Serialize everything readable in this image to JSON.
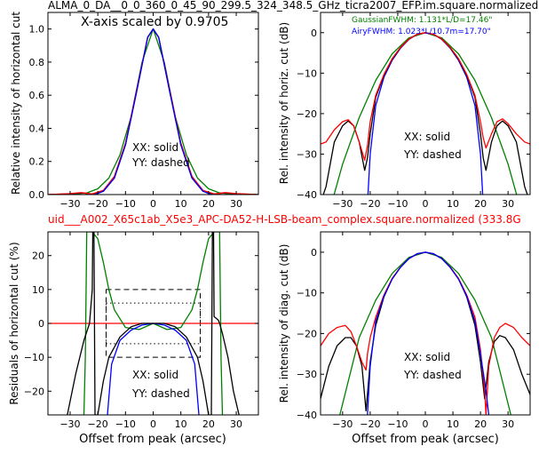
{
  "figure": {
    "title_top": "ALMA_0_DA__0_0_360_0_45_90_299.5_324_348.5_GHz_ticra2007_EFP.im.square.normalized",
    "title_mid": "uid___A002_X65c1ab_X5e3_APC-DA52-H-LSB-beam_complex.square.normalized (333.8G",
    "scale_note": "X-axis scaled by 0.9705",
    "colors": {
      "xx": "#0000ff",
      "yy": "#ff0000",
      "model": "#000000",
      "gauss": "#008000"
    }
  },
  "panels": {
    "tl": {
      "ylabel": "Relative intensity of horizontal cut",
      "xlabel": "",
      "note1": "XX: solid",
      "note2": "YY: dashed"
    },
    "tr": {
      "ylabel": "Rel. intensity of horiz. cut (dB)",
      "xlabel": "",
      "note1": "XX: solid",
      "note2": "YY: dashed",
      "legend_gauss": "GaussianFWHM: 1.131*L/D=17.46\"",
      "legend_airy": "AiryFWHM: 1.023*L/10.7m=17.70\""
    },
    "bl": {
      "ylabel": "Residuals of horizontal cut (%)",
      "xlabel": "Offset from peak (arcsec)",
      "note1": "XX: solid",
      "note2": "YY: dashed"
    },
    "br": {
      "ylabel": "Rel. intensity of diag. cut (dB)",
      "xlabel": "Offset from peak (arcsec)",
      "note1": "XX: solid",
      "note2": "YY: dashed"
    }
  },
  "chart_data": [
    {
      "id": "tl",
      "type": "line",
      "xlim": [
        -38,
        38
      ],
      "ylim": [
        0,
        1.1
      ],
      "xticks": [
        -30,
        -20,
        -10,
        0,
        10,
        20,
        30
      ],
      "yticks": [
        0.0,
        0.2,
        0.4,
        0.6,
        0.8,
        1.0
      ],
      "ytick_labels": [
        "0.0",
        "0.2",
        "0.4",
        "0.6",
        "0.8",
        "1.0"
      ],
      "series": [
        {
          "color": "#008000",
          "x": [
            -38,
            -30,
            -24,
            -20,
            -16,
            -12,
            -8,
            -4,
            0,
            4,
            8,
            12,
            16,
            20,
            24,
            30,
            38
          ],
          "y": [
            0,
            0,
            0.01,
            0.035,
            0.1,
            0.24,
            0.47,
            0.8,
            1.0,
            0.8,
            0.47,
            0.24,
            0.1,
            0.035,
            0.01,
            0,
            0
          ]
        },
        {
          "color": "#000000",
          "x": [
            -38,
            -30,
            -26,
            -22,
            -18,
            -14,
            -10,
            -6,
            -2,
            0,
            2,
            6,
            10,
            14,
            18,
            22,
            26,
            30,
            38
          ],
          "y": [
            0,
            0.005,
            0.01,
            0.003,
            0.02,
            0.1,
            0.3,
            0.62,
            0.95,
            1.0,
            0.95,
            0.62,
            0.3,
            0.1,
            0.02,
            0.003,
            0.01,
            0.005,
            0
          ]
        },
        {
          "color": "#ff0000",
          "x": [
            -38,
            -30,
            -26,
            -22,
            -18,
            -14,
            -10,
            -6,
            -2,
            0,
            2,
            6,
            10,
            14,
            18,
            22,
            26,
            30,
            38
          ],
          "y": [
            0,
            0.006,
            0.012,
            0.004,
            0.025,
            0.11,
            0.31,
            0.63,
            0.95,
            1.0,
            0.95,
            0.63,
            0.31,
            0.11,
            0.025,
            0.004,
            0.012,
            0.006,
            0
          ]
        },
        {
          "color": "#0000ff",
          "x": [
            -21,
            -18,
            -14,
            -10,
            -6,
            -2,
            0,
            2,
            6,
            10,
            14,
            18,
            21
          ],
          "y": [
            0,
            0.02,
            0.1,
            0.3,
            0.62,
            0.95,
            1.0,
            0.95,
            0.62,
            0.3,
            0.1,
            0.02,
            0
          ]
        }
      ]
    },
    {
      "id": "tr",
      "type": "line",
      "xlim": [
        -38,
        38
      ],
      "ylim": [
        -40,
        5
      ],
      "xticks": [
        -30,
        -20,
        -10,
        0,
        10,
        20,
        30
      ],
      "yticks": [
        0,
        -10,
        -20,
        -30,
        -40
      ],
      "ytick_labels": [
        "0",
        "−10",
        "−20",
        "−30",
        "−40"
      ],
      "series": [
        {
          "color": "#008000",
          "x": [
            -38,
            -30,
            -24,
            -18,
            -12,
            -6,
            0,
            6,
            12,
            18,
            24,
            30,
            38
          ],
          "y": [
            -52,
            -32.5,
            -21,
            -11.8,
            -5.2,
            -1.3,
            0,
            -1.3,
            -5.2,
            -11.8,
            -21,
            -32.5,
            -52
          ]
        },
        {
          "color": "#0000ff",
          "x": [
            -20.8,
            -20,
            -18,
            -15,
            -12,
            -9,
            -6,
            -3,
            0,
            3,
            6,
            9,
            12,
            15,
            18,
            20,
            20.8
          ],
          "y": [
            -40,
            -30,
            -18,
            -11,
            -6.8,
            -3.8,
            -1.7,
            -0.4,
            0,
            -0.4,
            -1.7,
            -3.8,
            -6.8,
            -11,
            -18,
            -30,
            -40
          ]
        },
        {
          "color": "#000000",
          "x": [
            -38,
            -36,
            -33,
            -30,
            -28,
            -26,
            -24,
            -22,
            -21,
            -20,
            -18,
            -15,
            -12,
            -9,
            -6,
            -3,
            0,
            3,
            6,
            9,
            12,
            15,
            18,
            20,
            21,
            22,
            24,
            26,
            28,
            30,
            33,
            36,
            38
          ],
          "y": [
            -42,
            -38,
            -27,
            -23,
            -21.8,
            -23,
            -27,
            -34,
            -31,
            -25,
            -16,
            -10.5,
            -6.5,
            -3.7,
            -1.6,
            -0.4,
            0,
            -0.4,
            -1.6,
            -3.7,
            -6.5,
            -10.5,
            -16,
            -25,
            -31,
            -34,
            -27,
            -23,
            -21.8,
            -23,
            -27,
            -38,
            -42
          ]
        },
        {
          "color": "#ff0000",
          "x": [
            -38,
            -36,
            -33,
            -30,
            -28,
            -26,
            -24,
            -22,
            -21,
            -20,
            -18,
            -15,
            -12,
            -9,
            -6,
            -3,
            0,
            3,
            6,
            9,
            12,
            15,
            18,
            20,
            21,
            22,
            24,
            26,
            28,
            30,
            33,
            36,
            38
          ],
          "y": [
            -27.5,
            -27,
            -24,
            -22,
            -21.5,
            -23,
            -27,
            -31.5,
            -28,
            -22,
            -15.5,
            -10.3,
            -6.4,
            -3.6,
            -1.6,
            -0.4,
            0,
            -0.4,
            -1.6,
            -3.6,
            -6.4,
            -10.3,
            -15.5,
            -22,
            -26,
            -28.5,
            -25,
            -22,
            -21.3,
            -22.5,
            -25,
            -27,
            -27.5
          ]
        }
      ]
    },
    {
      "id": "bl",
      "type": "line",
      "xlim": [
        -38,
        38
      ],
      "ylim": [
        -27,
        27
      ],
      "xticks": [
        -30,
        -20,
        -10,
        0,
        10,
        20,
        30
      ],
      "yticks": [
        20,
        10,
        0,
        -10,
        -20
      ],
      "ytick_labels": [
        "20",
        "10",
        "0",
        "−10",
        "−20"
      ],
      "series": [
        {
          "color": "#ff0000",
          "x": [
            -38,
            38
          ],
          "y": [
            0,
            0
          ]
        },
        {
          "color": "#008000",
          "x": [
            -25,
            -24.5,
            -24,
            -23,
            -22,
            -20,
            -18,
            -16,
            -14,
            -10,
            -5,
            0,
            5,
            10,
            14,
            16,
            18,
            20,
            22,
            23,
            24,
            24.5,
            25
          ],
          "y": [
            -27,
            -10,
            27,
            27,
            27,
            25,
            18,
            10,
            4,
            -1.2,
            -1.8,
            0,
            -1.8,
            -1.2,
            4,
            10,
            18,
            25,
            27,
            27,
            27,
            -10,
            -27
          ]
        },
        {
          "color": "#0000ff",
          "x": [
            -16.5,
            -15,
            -12,
            -8,
            -4,
            0,
            4,
            8,
            12,
            15,
            16.5
          ],
          "y": [
            -27,
            -12,
            -5,
            -2,
            -0.5,
            0,
            -0.5,
            -2,
            -5,
            -12,
            -27
          ]
        },
        {
          "color": "#000000",
          "x": [
            -31,
            -28,
            -25,
            -23,
            -22,
            -21.8,
            -21.4,
            -21,
            -20,
            -18,
            -16,
            -12,
            -8,
            -4,
            0,
            4,
            8,
            12,
            16,
            18,
            20,
            21,
            21.4,
            21.8,
            22,
            23.5,
            24,
            25,
            27,
            29,
            31
          ],
          "y": [
            -27,
            -15,
            -5,
            0,
            10,
            27,
            27,
            -27,
            -27,
            -17,
            -10,
            -4,
            -1,
            0,
            0,
            0,
            -1,
            -4,
            -10,
            -17,
            -27,
            -27,
            27,
            27,
            2,
            1,
            0,
            -3,
            -10,
            -20,
            -27
          ]
        }
      ],
      "boxes": [
        {
          "x": [
            -17,
            17
          ],
          "y": [
            -10,
            10
          ],
          "dash": "dashed"
        },
        {
          "x": [
            -17,
            17
          ],
          "y": [
            -6,
            6
          ],
          "dash": "dotted"
        }
      ]
    },
    {
      "id": "br",
      "type": "line",
      "xlim": [
        -38,
        38
      ],
      "ylim": [
        -40,
        5
      ],
      "xticks": [
        -30,
        -20,
        -10,
        0,
        10,
        20,
        30
      ],
      "yticks": [
        0,
        -10,
        -20,
        -30,
        -40
      ],
      "ytick_labels": [
        "0",
        "−10",
        "−20",
        "−30",
        "−40"
      ],
      "series": [
        {
          "color": "#008000",
          "x": [
            -31,
            -24,
            -18,
            -12,
            -6,
            0,
            6,
            12,
            18,
            24,
            31
          ],
          "y": [
            -40,
            -21,
            -11.8,
            -5.2,
            -1.3,
            0,
            -1.3,
            -5.2,
            -11.8,
            -21,
            -40
          ]
        },
        {
          "color": "#000000",
          "x": [
            -38,
            -35,
            -32,
            -29,
            -27,
            -25,
            -23,
            -21.5,
            -21,
            -20,
            -18,
            -15,
            -12,
            -9,
            -6,
            -3,
            0,
            3,
            6,
            9,
            12,
            15,
            18,
            20,
            21.5,
            22,
            23,
            25,
            27,
            29,
            32,
            35,
            38
          ],
          "y": [
            -36,
            -28,
            -23,
            -21,
            -21,
            -23,
            -28,
            -39,
            -35,
            -27,
            -18,
            -11,
            -6.5,
            -3.7,
            -1.6,
            -0.4,
            0,
            -0.4,
            -1.6,
            -3.7,
            -6.5,
            -11,
            -18,
            -27,
            -36,
            -33,
            -27,
            -22,
            -20.5,
            -21,
            -24,
            -30,
            -35
          ]
        },
        {
          "color": "#ff0000",
          "x": [
            -38,
            -35,
            -32,
            -29,
            -27,
            -25,
            -23,
            -21.5,
            -21,
            -20,
            -18,
            -15,
            -12,
            -9,
            -6,
            -3,
            0,
            3,
            6,
            9,
            12,
            15,
            18,
            20,
            21.5,
            22,
            23,
            25,
            27,
            29,
            32,
            35,
            38
          ],
          "y": [
            -23,
            -20,
            -18.5,
            -18,
            -19.5,
            -23,
            -27,
            -29,
            -25,
            -21,
            -16,
            -10.5,
            -6.4,
            -3.6,
            -1.6,
            -0.4,
            0,
            -0.4,
            -1.6,
            -3.6,
            -6.4,
            -10.5,
            -16,
            -24,
            -34,
            -40,
            -28,
            -21,
            -18.5,
            -17.5,
            -18.5,
            -21,
            -23
          ]
        },
        {
          "color": "#0000ff",
          "x": [
            -21,
            -20,
            -18,
            -15,
            -12,
            -9,
            -6,
            -3,
            0,
            3,
            6,
            9,
            12,
            15,
            18,
            20,
            22,
            23
          ],
          "y": [
            -40,
            -28,
            -17,
            -10.8,
            -6.6,
            -3.7,
            -1.6,
            -0.4,
            0,
            -0.4,
            -1.6,
            -3.7,
            -6.6,
            -10.8,
            -17,
            -25,
            -34,
            -40
          ]
        }
      ]
    }
  ]
}
